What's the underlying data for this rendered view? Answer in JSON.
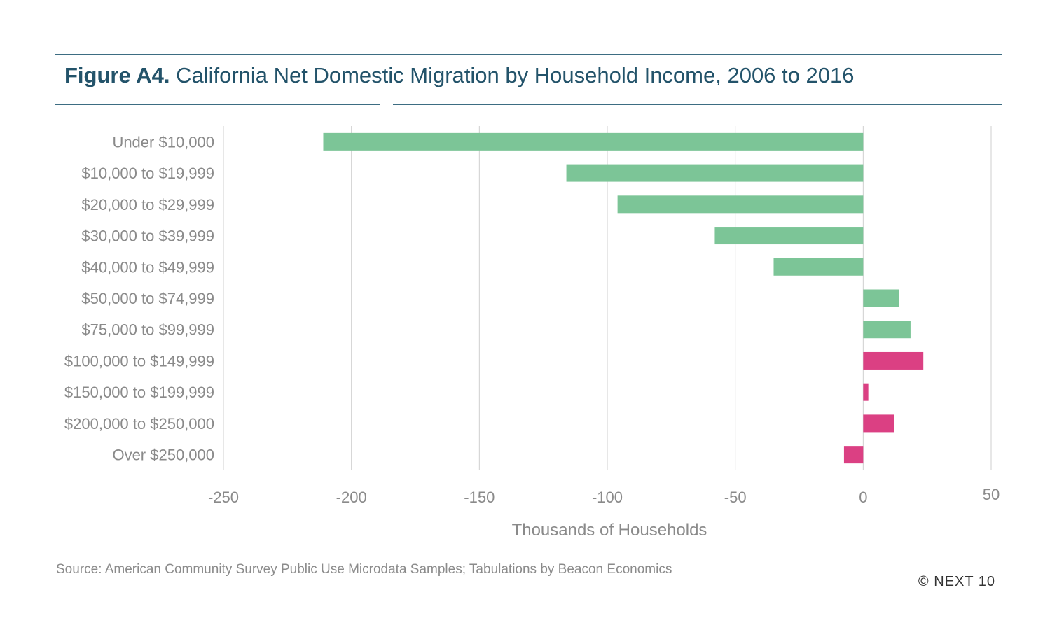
{
  "title_prefix": "Figure A4.",
  "title_main": "California Net Domestic Migration by Household Income, 2006 to 2016",
  "source": "Source: American Community Survey Public Use Microdata Samples; Tabulations by Beacon Economics",
  "copyright": "© NEXT 10",
  "colors": {
    "green": "#7cc597",
    "pink": "#db4083",
    "grid": "#cfcfcf",
    "axis_text": "#8a8a8a",
    "rule": "#3d6d82",
    "title": "#23536a"
  },
  "chart_data": {
    "type": "bar",
    "orientation": "horizontal",
    "categories": [
      "Under $10,000",
      "$10,000 to $19,999",
      "$20,000 to $29,999",
      "$30,000 to $39,999",
      "$40,000 to $49,999",
      "$50,000 to $74,999",
      "$75,000 to $99,999",
      "$100,000 to $149,999",
      "$150,000 to $199,999",
      "$200,000 to $250,000",
      "Over $250,000"
    ],
    "values": [
      -211,
      -116,
      -96,
      -58,
      -35,
      14,
      18.5,
      23.5,
      2,
      12,
      -7.5
    ],
    "bar_colors": [
      "green",
      "green",
      "green",
      "green",
      "green",
      "green",
      "green",
      "pink",
      "pink",
      "pink",
      "pink"
    ],
    "xlabel": "Thousands of Households",
    "xlim": [
      -250,
      50
    ],
    "xticks": [
      "-250",
      "-200",
      "-150",
      "-100",
      "-50",
      "0",
      "50"
    ],
    "grid": "vertical"
  }
}
